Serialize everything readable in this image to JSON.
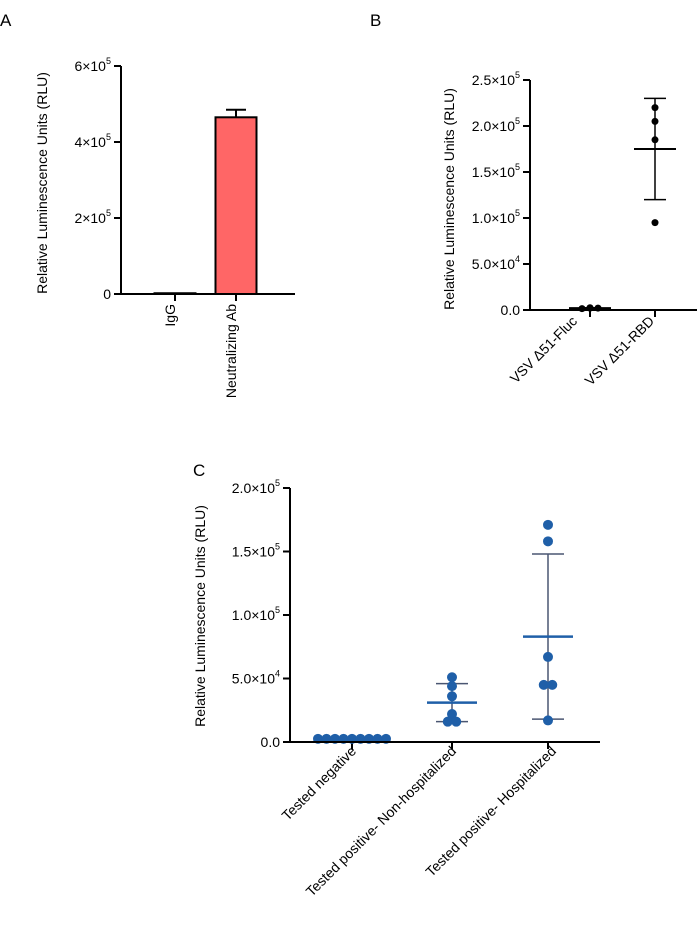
{
  "colors": {
    "bar_neutralizing": "#ff6666",
    "panel_c_points": "#1f5fa8",
    "panel_c_errorbar": "#4a5672",
    "black": "#000000"
  },
  "chart_data": [
    {
      "panel": "A",
      "type": "bar",
      "ylabel": "Relative Luminescence Units (RLU)",
      "ylim": [
        0,
        600000
      ],
      "yticks": [
        {
          "value": 0,
          "mantissa": "0",
          "exponent": ""
        },
        {
          "value": 200000,
          "mantissa": "2×10",
          "exponent": "5"
        },
        {
          "value": 400000,
          "mantissa": "4×10",
          "exponent": "5"
        },
        {
          "value": 600000,
          "mantissa": "6×10",
          "exponent": "5"
        }
      ],
      "categories": [
        "IgG",
        "Neutralizing Ab"
      ],
      "values": [
        2000,
        465000
      ],
      "errors": [
        0,
        20000
      ]
    },
    {
      "panel": "B",
      "type": "scatter",
      "ylabel": "Relative Luminescence Units (RLU)",
      "ylim": [
        0,
        250000
      ],
      "yticks": [
        {
          "value": 0,
          "mantissa": "0.0",
          "exponent": ""
        },
        {
          "value": 50000,
          "mantissa": "5.0×10",
          "exponent": "4"
        },
        {
          "value": 100000,
          "mantissa": "1.0×10",
          "exponent": "5"
        },
        {
          "value": 150000,
          "mantissa": "1.5×10",
          "exponent": "5"
        },
        {
          "value": 200000,
          "mantissa": "2.0×10",
          "exponent": "5"
        },
        {
          "value": 250000,
          "mantissa": "2.5×10",
          "exponent": "5"
        }
      ],
      "categories": [
        "VSV Δ51-Fluc",
        "VSV Δ51-RBD"
      ],
      "points": [
        [
          1500,
          2000,
          2500,
          2000
        ],
        [
          220000,
          205000,
          185000,
          95000
        ]
      ],
      "mean": [
        2000,
        175000
      ],
      "sd": [
        500,
        55000
      ]
    },
    {
      "panel": "C",
      "type": "scatter",
      "ylabel": "Relative Luminescence Units (RLU)",
      "ylim": [
        0,
        200000
      ],
      "yticks": [
        {
          "value": 0,
          "mantissa": "0.0",
          "exponent": ""
        },
        {
          "value": 50000,
          "mantissa": "5.0×10",
          "exponent": "4"
        },
        {
          "value": 100000,
          "mantissa": "1.0×10",
          "exponent": "5"
        },
        {
          "value": 150000,
          "mantissa": "1.5×10",
          "exponent": "5"
        },
        {
          "value": 200000,
          "mantissa": "2.0×10",
          "exponent": "5"
        }
      ],
      "categories": [
        "Tested negative",
        "Tested positive- Non-hospitalized",
        "Tested positive- Hospitalized"
      ],
      "points": [
        [
          2500,
          2500,
          2500,
          2500,
          2500,
          2500,
          2500,
          2500,
          2500
        ],
        [
          51000,
          44000,
          36000,
          22000,
          16000,
          16000
        ],
        [
          171000,
          158000,
          67000,
          45000,
          45000,
          17000
        ]
      ],
      "mean": [
        2500,
        31000,
        83000
      ],
      "sd": [
        0,
        15000,
        65000
      ]
    }
  ]
}
